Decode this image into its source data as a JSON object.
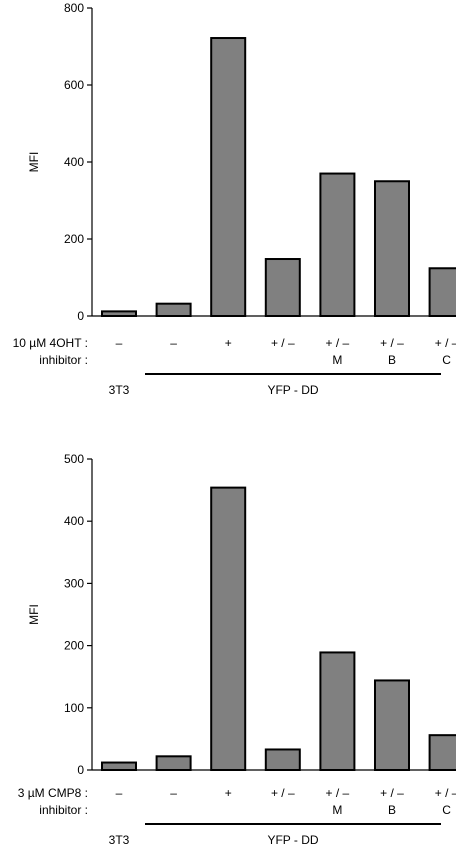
{
  "chart_data": [
    {
      "type": "bar",
      "ylabel": "MFI",
      "ylim": [
        0,
        800
      ],
      "yticks": [
        0,
        200,
        400,
        600,
        800
      ],
      "values": [
        12,
        32,
        722,
        148,
        370,
        350,
        124
      ],
      "bar_color": "#808080",
      "row_labels": [
        "10 µM 4OHT :",
        "inhibitor :"
      ],
      "treatment": [
        "–",
        "–",
        "+",
        "+ / –",
        "+ / –",
        "+ / –",
        "+ / –"
      ],
      "inhibitor": [
        "",
        "",
        "",
        "",
        "M",
        "B",
        "C"
      ],
      "groups": [
        {
          "label": "3T3",
          "span": [
            0,
            0
          ],
          "underline": false
        },
        {
          "label": "YFP - DD",
          "span": [
            1,
            6
          ],
          "underline": true
        }
      ]
    },
    {
      "type": "bar",
      "ylabel": "MFI",
      "ylim": [
        0,
        500
      ],
      "yticks": [
        0,
        100,
        200,
        300,
        400,
        500
      ],
      "values": [
        12,
        22,
        454,
        33,
        189,
        144,
        56
      ],
      "bar_color": "#808080",
      "row_labels": [
        "3 µM CMP8 :",
        "inhibitor :"
      ],
      "treatment": [
        "–",
        "–",
        "+",
        "+ / –",
        "+ / –",
        "+ / –",
        "+ / –"
      ],
      "inhibitor": [
        "",
        "",
        "",
        "",
        "M",
        "B",
        "C"
      ],
      "groups": [
        {
          "label": "3T3",
          "span": [
            0,
            0
          ],
          "underline": false
        },
        {
          "label": "YFP - DD",
          "span": [
            1,
            6
          ],
          "underline": true
        }
      ]
    }
  ]
}
